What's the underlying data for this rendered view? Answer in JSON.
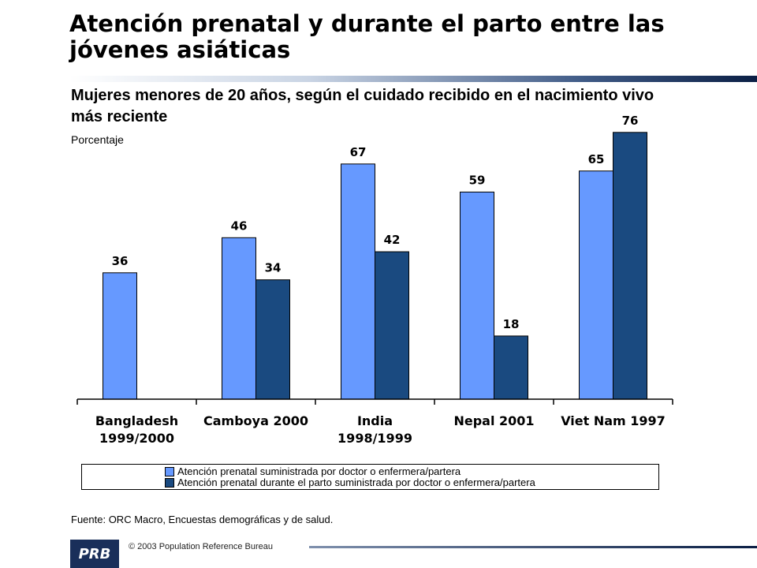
{
  "header": {
    "title": "Atención prenatal y durante el parto entre las jóvenes asiáticas",
    "subtitle": "Mujeres menores de 20 años, según el cuidado recibido en el nacimiento vivo más reciente",
    "unit_label": "Porcentaje"
  },
  "chart_data": {
    "type": "bar",
    "categories": [
      [
        "Bangladesh",
        "1999/2000"
      ],
      [
        "Camboya 2000"
      ],
      [
        "India",
        "1998/1999"
      ],
      [
        "Nepal 2001"
      ],
      [
        "Viet Nam 1997"
      ]
    ],
    "series": [
      {
        "name": "Atención prenatal suministrada por doctor o enfermera/partera",
        "color": "#6699ff",
        "values": [
          36,
          46,
          67,
          59,
          65
        ]
      },
      {
        "name": "Atención prenatal durante el parto suministrada por doctor o enfermera/partera",
        "color": "#1a4a80",
        "values": [
          null,
          34,
          42,
          18,
          76
        ]
      }
    ],
    "ylabel": "Porcentaje",
    "ylim": [
      0,
      80
    ],
    "grid": false,
    "legend_position": "bottom",
    "data_labels": true
  },
  "footer": {
    "source": "Fuente: ORC Macro, Encuestas demográficas y de salud.",
    "logo_text": "PRB",
    "copyright": "© 2003 Population Reference Bureau"
  }
}
